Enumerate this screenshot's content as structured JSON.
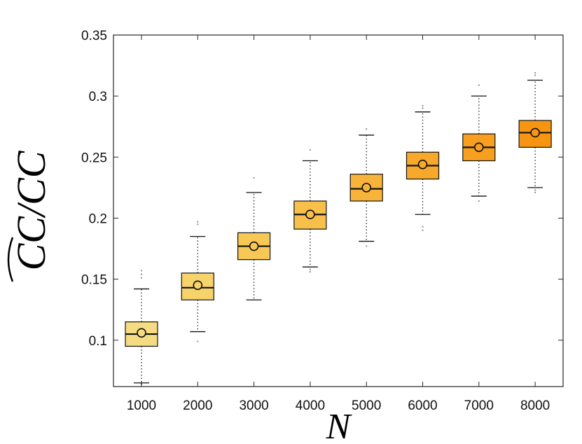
{
  "chart_data": {
    "type": "box",
    "title": "",
    "xlabel": "N",
    "ylabel": "CC/CC",
    "ylabel_hat_over_numerator": true,
    "categories": [
      "1000",
      "2000",
      "3000",
      "4000",
      "5000",
      "6000",
      "7000",
      "8000"
    ],
    "ylim": [
      0.062,
      0.35
    ],
    "yticks": [
      0.1,
      0.15,
      0.2,
      0.25,
      0.3,
      0.35
    ],
    "ytick_labels": [
      "0.1",
      "0.15",
      "0.2",
      "0.25",
      "0.3",
      "0.35"
    ],
    "grid": false,
    "boxes": [
      {
        "category": "1000",
        "whisker_low": 0.065,
        "q1": 0.095,
        "median": 0.105,
        "q3": 0.115,
        "whisker_high": 0.142,
        "mean": 0.106,
        "outliers": [
          0.064,
          0.151,
          0.154,
          0.157
        ],
        "color": "#f5dc82"
      },
      {
        "category": "2000",
        "whisker_low": 0.107,
        "q1": 0.133,
        "median": 0.143,
        "q3": 0.155,
        "whisker_high": 0.185,
        "mean": 0.145,
        "outliers": [
          0.099,
          0.195,
          0.197
        ],
        "color": "#f7d36b"
      },
      {
        "category": "3000",
        "whisker_low": 0.133,
        "q1": 0.166,
        "median": 0.177,
        "q3": 0.188,
        "whisker_high": 0.221,
        "mean": 0.177,
        "outliers": [
          0.233
        ],
        "color": "#f8c855"
      },
      {
        "category": "4000",
        "whisker_low": 0.16,
        "q1": 0.191,
        "median": 0.203,
        "q3": 0.214,
        "whisker_high": 0.247,
        "mean": 0.203,
        "outliers": [
          0.156,
          0.158,
          0.256
        ],
        "color": "#f8c04a"
      },
      {
        "category": "5000",
        "whisker_low": 0.181,
        "q1": 0.214,
        "median": 0.224,
        "q3": 0.236,
        "whisker_high": 0.268,
        "mean": 0.225,
        "outliers": [
          0.177,
          0.273
        ],
        "color": "#f8b43a"
      },
      {
        "category": "6000",
        "whisker_low": 0.203,
        "q1": 0.232,
        "median": 0.243,
        "q3": 0.254,
        "whisker_high": 0.287,
        "mean": 0.244,
        "outliers": [
          0.19,
          0.193,
          0.29,
          0.292
        ],
        "color": "#f8a92b"
      },
      {
        "category": "7000",
        "whisker_low": 0.218,
        "q1": 0.247,
        "median": 0.258,
        "q3": 0.269,
        "whisker_high": 0.3,
        "mean": 0.258,
        "outliers": [
          0.214,
          0.309
        ],
        "color": "#f89f20"
      },
      {
        "category": "8000",
        "whisker_low": 0.225,
        "q1": 0.258,
        "median": 0.27,
        "q3": 0.28,
        "whisker_high": 0.313,
        "mean": 0.27,
        "outliers": [
          0.221,
          0.223,
          0.317,
          0.319
        ],
        "color": "#f79512"
      }
    ]
  }
}
